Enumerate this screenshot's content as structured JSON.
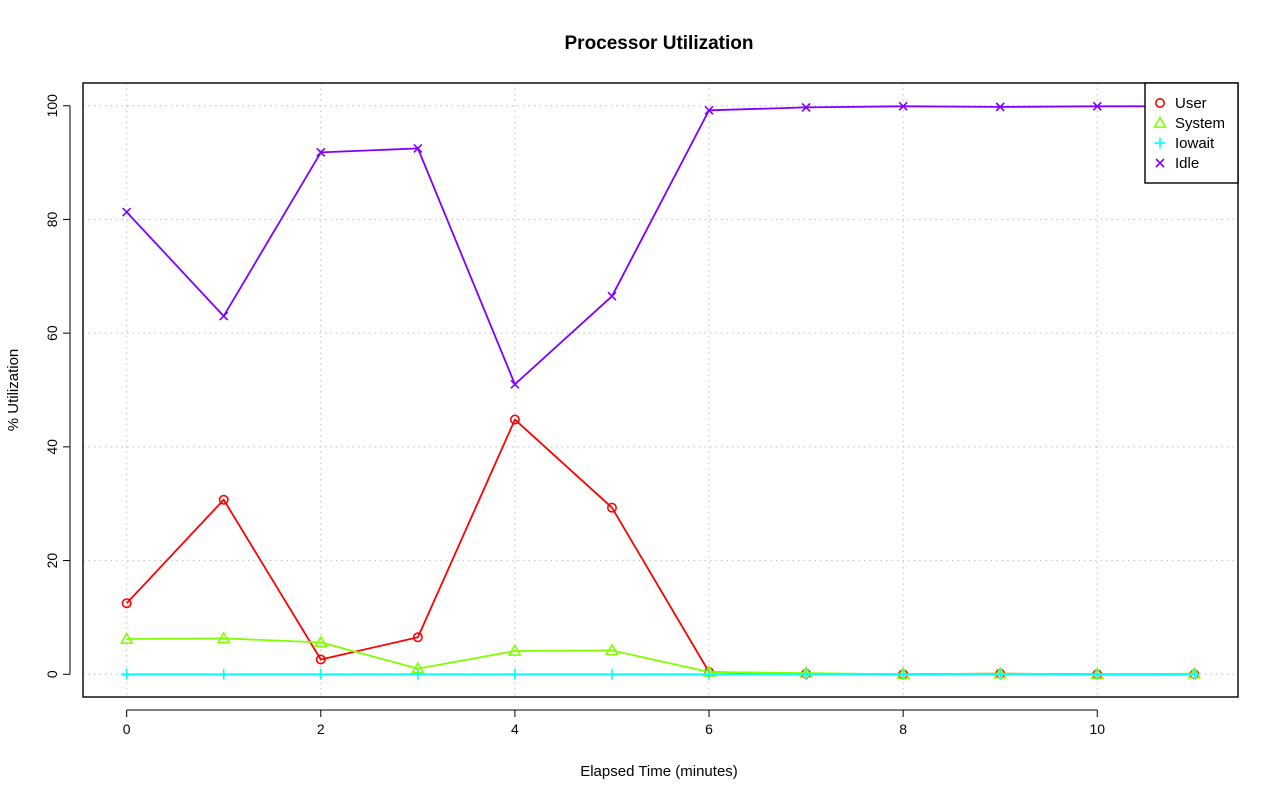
{
  "chart_data": {
    "type": "line",
    "title": "Processor Utilization",
    "xlabel": "Elapsed Time (minutes)",
    "ylabel": "% Utilization",
    "x": [
      0,
      1,
      2,
      3,
      4,
      5,
      6,
      7,
      8,
      9,
      10,
      11
    ],
    "xlim": [
      -0.45,
      11.45
    ],
    "ylim": [
      -4,
      104
    ],
    "xticks": [
      0,
      2,
      4,
      6,
      8,
      10
    ],
    "yticks": [
      0,
      20,
      40,
      60,
      80,
      100
    ],
    "grid": true,
    "legend_position": "top-right",
    "series": [
      {
        "name": "User",
        "color": "#ff0000",
        "marker": "circle",
        "values": [
          12.5,
          30.7,
          2.6,
          6.5,
          44.8,
          29.3,
          0.4,
          0.1,
          0.0,
          0.1,
          0.0,
          0.0
        ]
      },
      {
        "name": "System",
        "color": "#80ff00",
        "marker": "triangle",
        "values": [
          6.2,
          6.3,
          5.6,
          1.0,
          4.1,
          4.2,
          0.4,
          0.2,
          0.0,
          0.1,
          0.0,
          0.1
        ]
      },
      {
        "name": "Iowait",
        "color": "#00ffff",
        "marker": "plus",
        "values": [
          0,
          0,
          0,
          0,
          0,
          0,
          0,
          0,
          0,
          0,
          0,
          0
        ]
      },
      {
        "name": "Idle",
        "color": "#8000ff",
        "marker": "cross",
        "values": [
          81.3,
          63.0,
          91.8,
          92.5,
          51.0,
          66.5,
          99.2,
          99.7,
          99.9,
          99.8,
          99.9,
          99.9
        ]
      }
    ]
  }
}
